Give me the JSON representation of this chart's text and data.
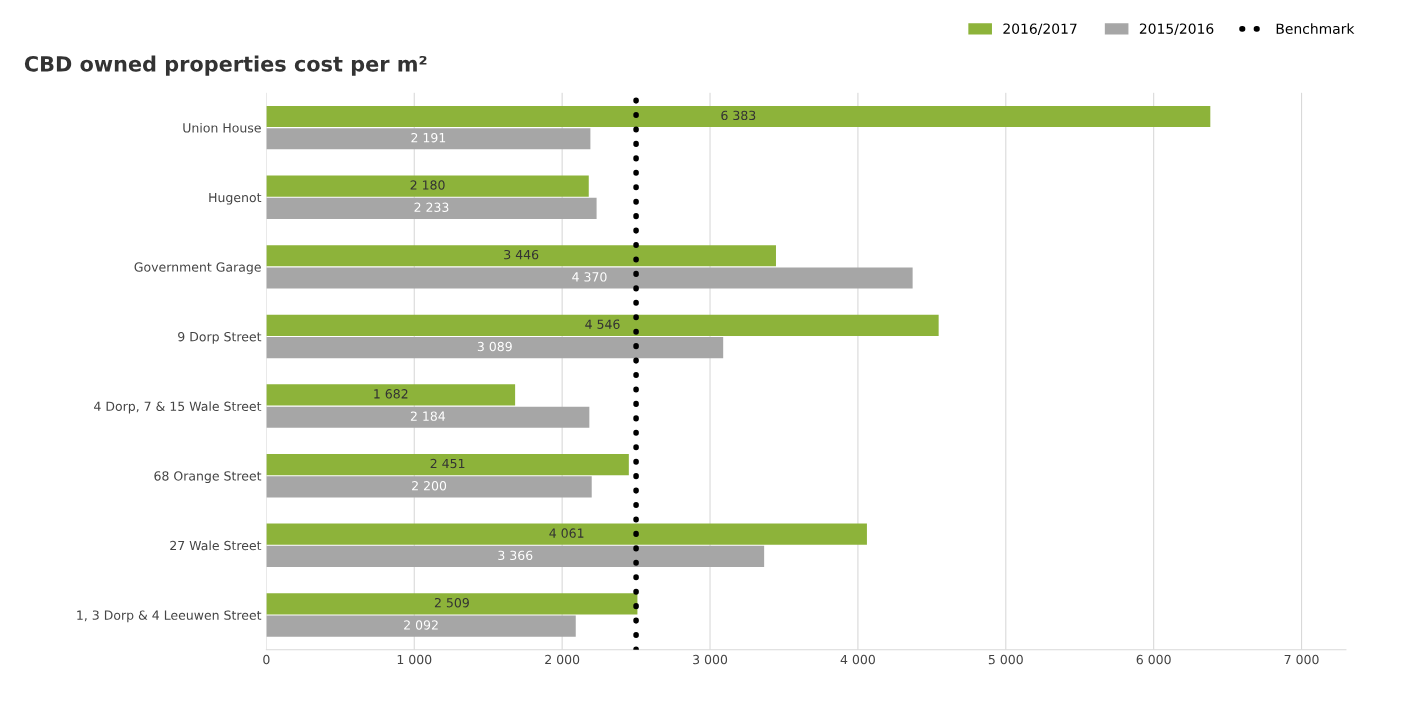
{
  "chart_data": {
    "type": "bar",
    "orientation": "horizontal",
    "title": "CBD owned properties cost per m²",
    "categories": [
      "Union House",
      "Hugenot",
      "Government Garage",
      "9 Dorp Street",
      "4 Dorp, 7 & 15 Wale Street",
      "68 Orange Street",
      "27 Wale Street",
      "1, 3 Dorp & 4 Leeuwen Street"
    ],
    "series": [
      {
        "name": "2016/2017",
        "color": "#8db33a",
        "values": [
          6383,
          2180,
          3446,
          4546,
          1682,
          2451,
          4061,
          2509
        ],
        "value_labels": [
          "6 383",
          "2 180",
          "3 446",
          "4 546",
          "1 682",
          "2 451",
          "4 061",
          "2 509"
        ]
      },
      {
        "name": "2015/2016",
        "color": "#a6a6a6",
        "values": [
          2191,
          2233,
          4370,
          3089,
          2184,
          2200,
          3366,
          2092
        ],
        "value_labels": [
          "2 191",
          "2 233",
          "4 370",
          "3 089",
          "2 184",
          "2 200",
          "3 366",
          "2 092"
        ]
      }
    ],
    "ref_lines": [
      {
        "axis": "x",
        "value": 2500,
        "label": "Benchmark",
        "color": "#000000",
        "line_style": "dotted"
      }
    ],
    "xlim": [
      0,
      7300
    ],
    "xticks": [
      0,
      {
        "value": 1000,
        "label": "1 000"
      },
      {
        "value": 2000,
        "label": "2 000"
      },
      {
        "value": 3000,
        "label": "3 000"
      },
      {
        "value": 4000,
        "label": "4 000"
      },
      {
        "value": 5000,
        "label": "5 000"
      },
      {
        "value": 6000,
        "label": "6 000"
      },
      {
        "value": 7000,
        "label": "7 000"
      }
    ],
    "grid": "x",
    "legend": "top right"
  }
}
